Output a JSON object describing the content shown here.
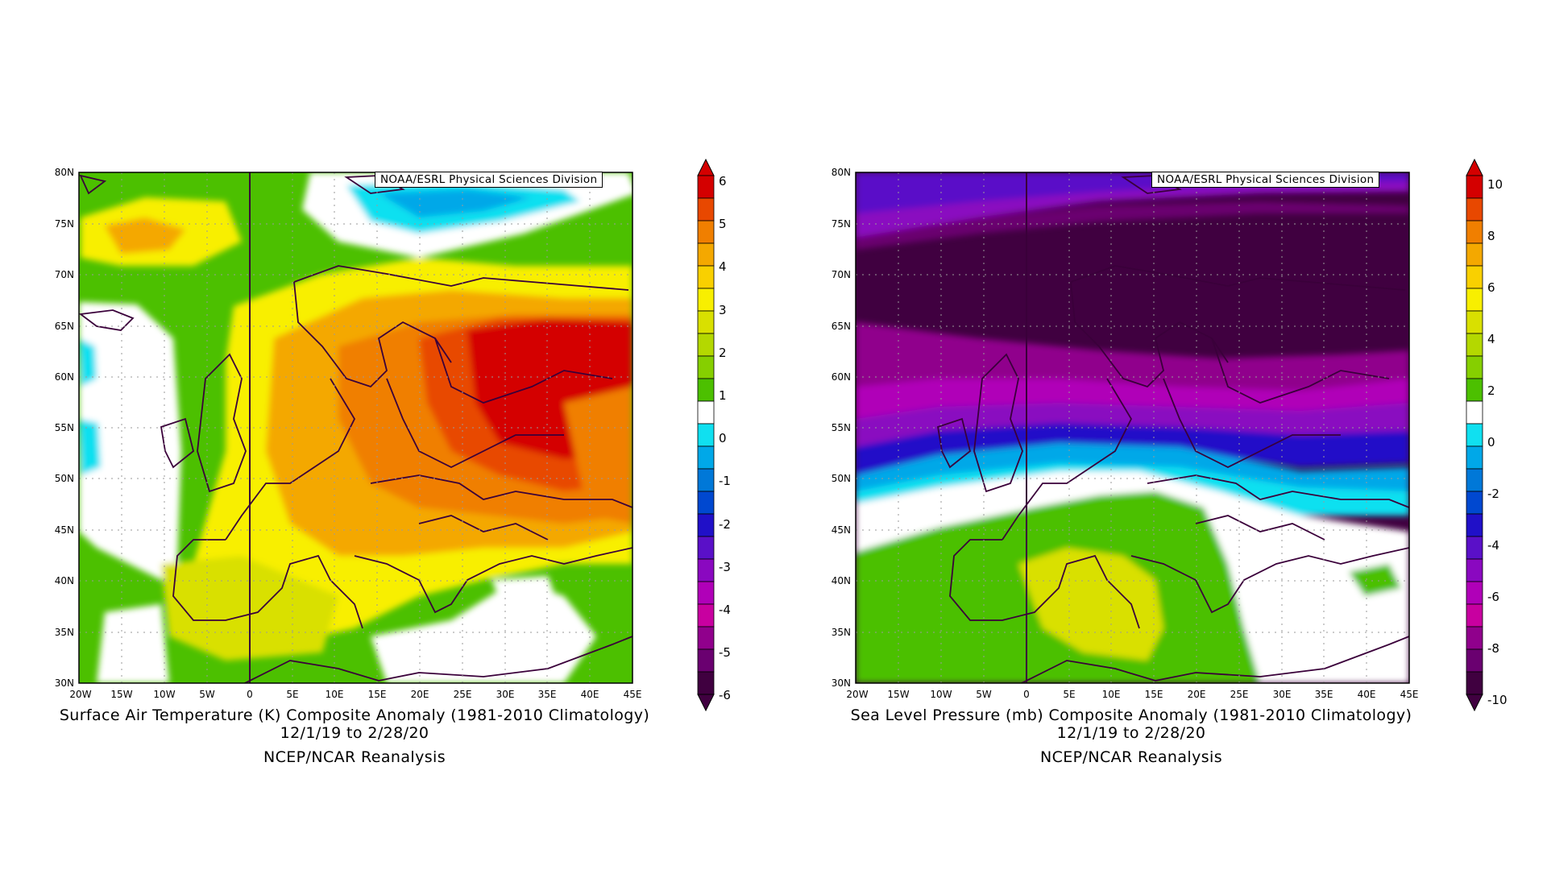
{
  "maps": [
    {
      "credit": "NOAA/ESRL Physical Sciences Division",
      "caption_line1": "Surface Air Temperature (K) Composite Anomaly (1981-2010 Climatology)",
      "caption_line2": "12/1/19  to 2/28/20",
      "caption_line3": "NCEP/NCAR Reanalysis",
      "lat_labels": [
        "80N",
        "75N",
        "70N",
        "65N",
        "60N",
        "55N",
        "50N",
        "45N",
        "40N",
        "35N",
        "30N"
      ],
      "lon_labels": [
        "20W",
        "15W",
        "10W",
        "5W",
        "0",
        "5E",
        "10E",
        "15E",
        "20E",
        "25E",
        "30E",
        "35E",
        "40E",
        "45E"
      ],
      "colorbar_labels": [
        "6",
        "5",
        "4",
        "3",
        "2",
        "1",
        "0",
        "-1",
        "-2",
        "-3",
        "-4",
        "-5",
        "-6"
      ],
      "colorbar_colors": [
        "#d40000",
        "#e84800",
        "#f07f00",
        "#f4a800",
        "#f9d000",
        "#f8ef00",
        "#d9e000",
        "#b4d800",
        "#86cf00",
        "#4cc000",
        "#ffffff",
        "#10e0f0",
        "#00a8e8",
        "#0078d8",
        "#0048d0",
        "#2010c8",
        "#5a10c8",
        "#8a08c0",
        "#b000b8",
        "#c800a0",
        "#90008c",
        "#6a0070",
        "#400040"
      ]
    },
    {
      "credit": "NOAA/ESRL Physical Sciences Division",
      "caption_line1": "Sea Level Pressure (mb) Composite Anomaly (1981-2010 Climatology)",
      "caption_line2": "12/1/19  to 2/28/20",
      "caption_line3": "NCEP/NCAR Reanalysis",
      "lat_labels": [
        "80N",
        "75N",
        "70N",
        "65N",
        "60N",
        "55N",
        "50N",
        "45N",
        "40N",
        "35N",
        "30N"
      ],
      "lon_labels": [
        "20W",
        "15W",
        "10W",
        "5W",
        "0",
        "5E",
        "10E",
        "15E",
        "20E",
        "25E",
        "30E",
        "35E",
        "40E",
        "45E"
      ],
      "colorbar_labels": [
        "10",
        "8",
        "6",
        "4",
        "2",
        "0",
        "-2",
        "-4",
        "-6",
        "-8",
        "-10"
      ],
      "colorbar_colors": [
        "#d40000",
        "#e84800",
        "#f07f00",
        "#f4a800",
        "#f9d000",
        "#f8ef00",
        "#d9e000",
        "#b4d800",
        "#86cf00",
        "#4cc000",
        "#ffffff",
        "#10e0f0",
        "#00a8e8",
        "#0078d8",
        "#0048d0",
        "#2010c8",
        "#5a10c8",
        "#8a08c0",
        "#b000b8",
        "#c800a0",
        "#90008c",
        "#6a0070",
        "#400040"
      ]
    }
  ]
}
